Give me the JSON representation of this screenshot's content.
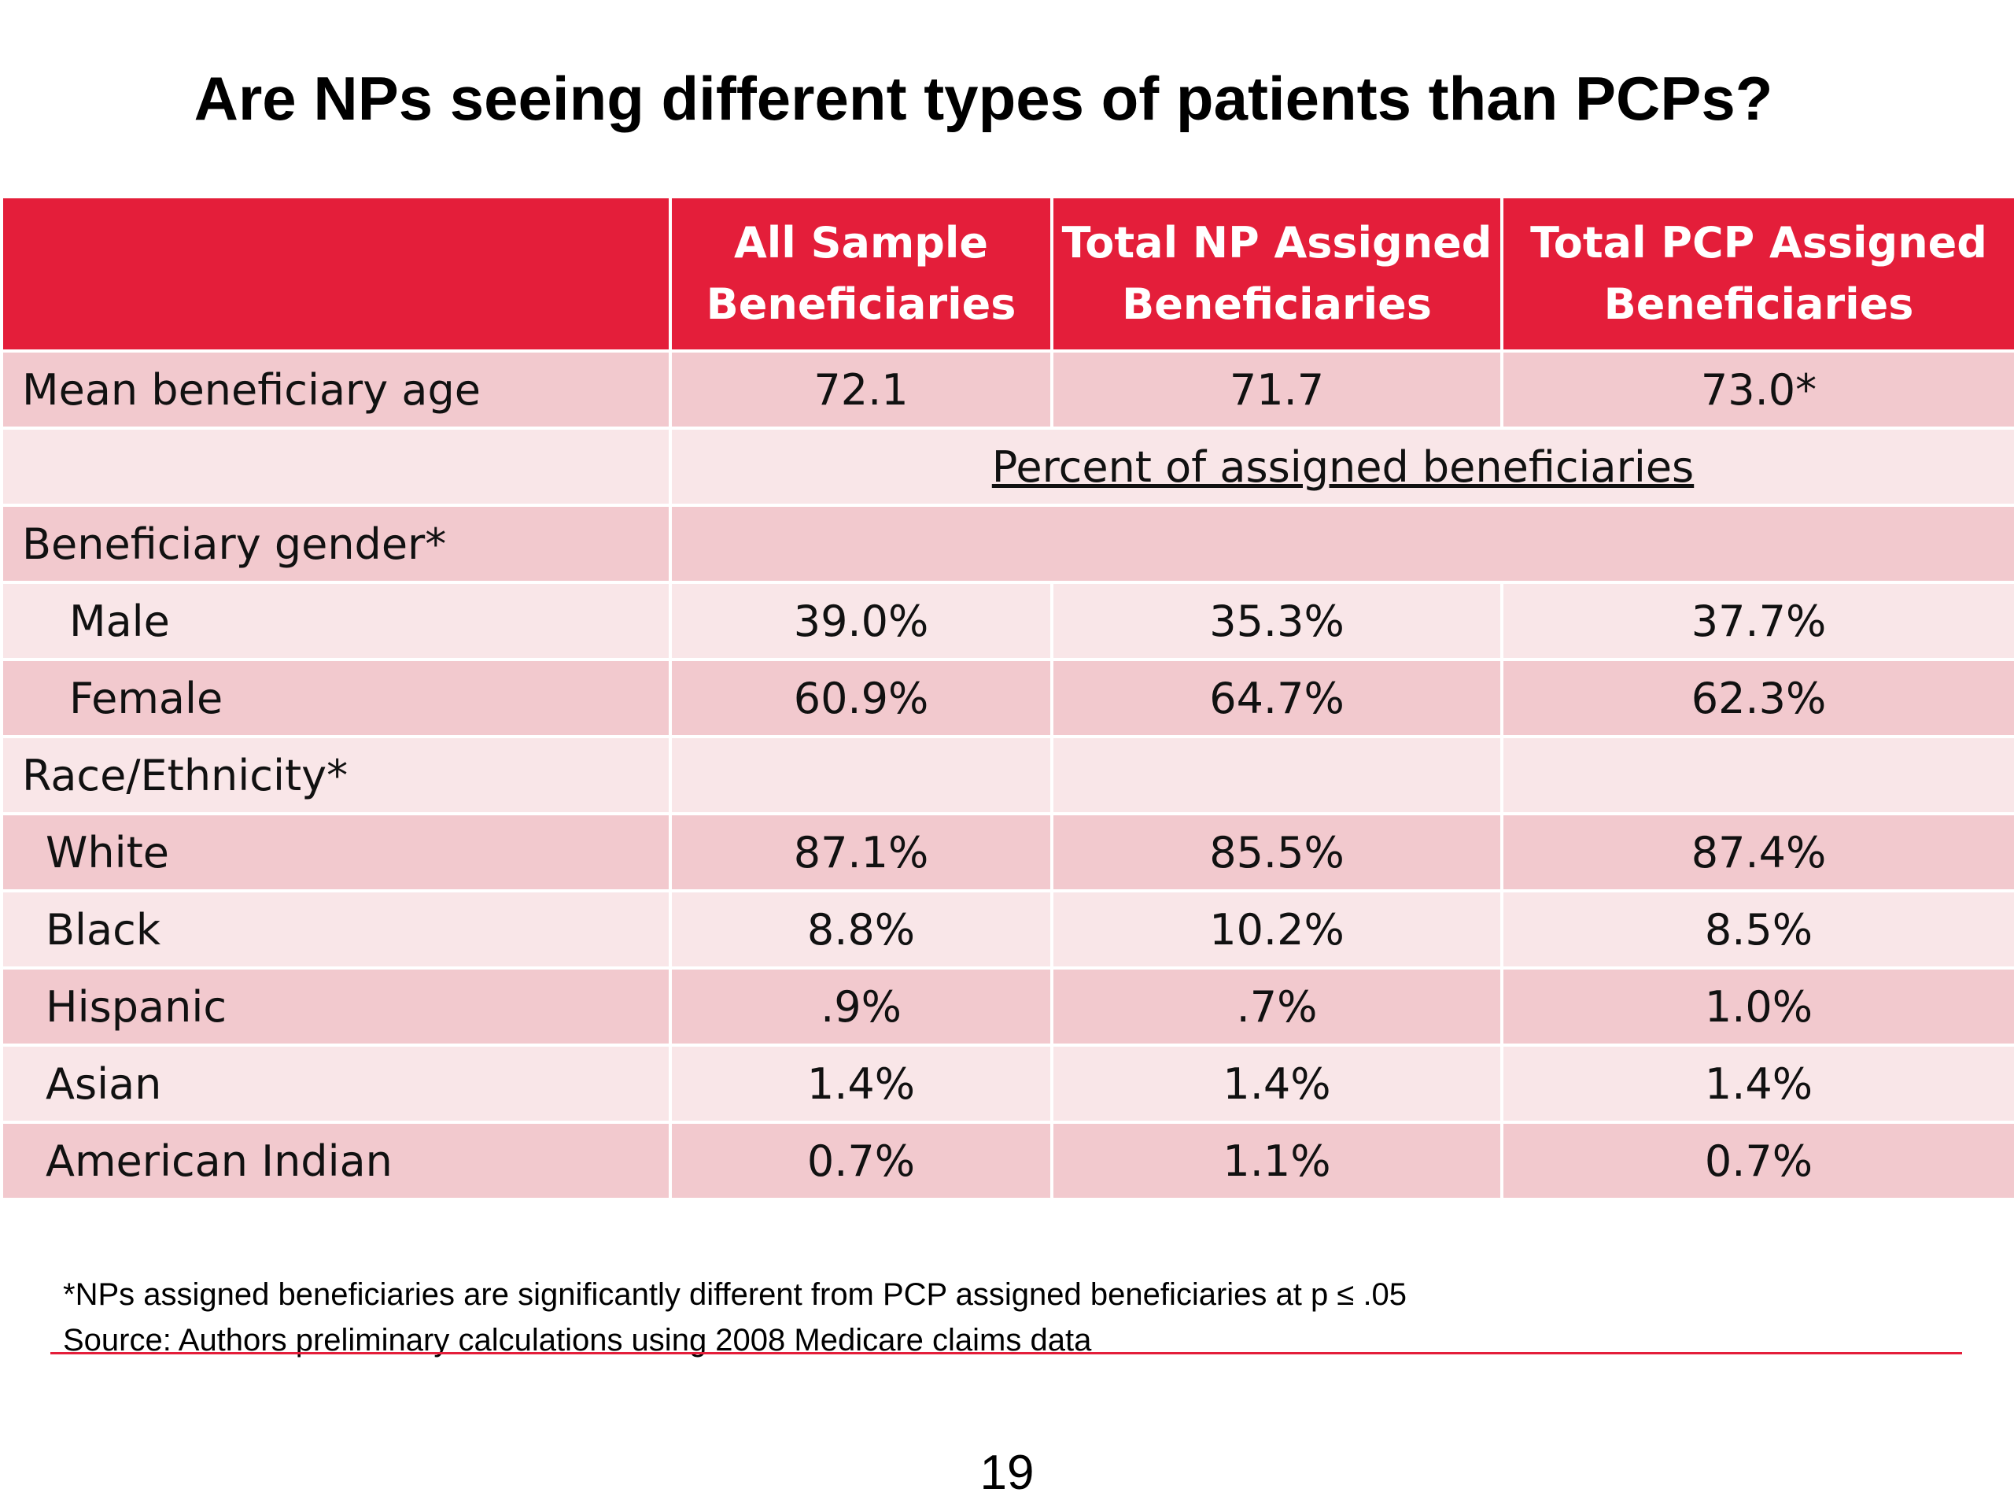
{
  "title": "Are NPs seeing different types of patients than PCPs?",
  "table": {
    "headers": [
      {
        "line1": "",
        "line2": ""
      },
      {
        "line1": "All Sample",
        "line2": "Beneficiaries"
      },
      {
        "line1": "Total NP Assigned",
        "line2": "Beneficiaries"
      },
      {
        "line1": "Total PCP Assigned",
        "line2": "Beneficiaries"
      }
    ],
    "mean_age": {
      "label": "Mean beneficiary age",
      "values": [
        "72.1",
        "71.7",
        "73.0*"
      ]
    },
    "percent_label": "Percent of assigned beneficiaries",
    "gender": {
      "label": "Beneficiary gender*",
      "rows": [
        {
          "label": "Male",
          "values": [
            "39.0%",
            "35.3%",
            "37.7%"
          ]
        },
        {
          "label": "Female",
          "values": [
            "60.9%",
            "64.7%",
            "62.3%"
          ]
        }
      ]
    },
    "race": {
      "label": "Race/Ethnicity*",
      "rows": [
        {
          "label": "White",
          "values": [
            "87.1%",
            "85.5%",
            "87.4%"
          ]
        },
        {
          "label": "Black",
          "values": [
            "8.8%",
            "10.2%",
            "8.5%"
          ]
        },
        {
          "label": "Hispanic",
          "values": [
            ".9%",
            ".7%",
            "1.0%"
          ]
        },
        {
          "label": "Asian",
          "values": [
            "1.4%",
            "1.4%",
            "1.4%"
          ]
        },
        {
          "label": "American Indian",
          "values": [
            "0.7%",
            "1.1%",
            "0.7%"
          ]
        }
      ]
    }
  },
  "footnotes": [
    "*NPs assigned beneficiaries are significantly different from PCP assigned beneficiaries at p ≤ .05",
    "Source: Authors preliminary calculations using 2008 Medicare claims data"
  ],
  "page_number": "19",
  "colors": {
    "accent": "#e41e3a",
    "row_dark": "#f2c9ce",
    "row_light": "#f9e6e8"
  }
}
